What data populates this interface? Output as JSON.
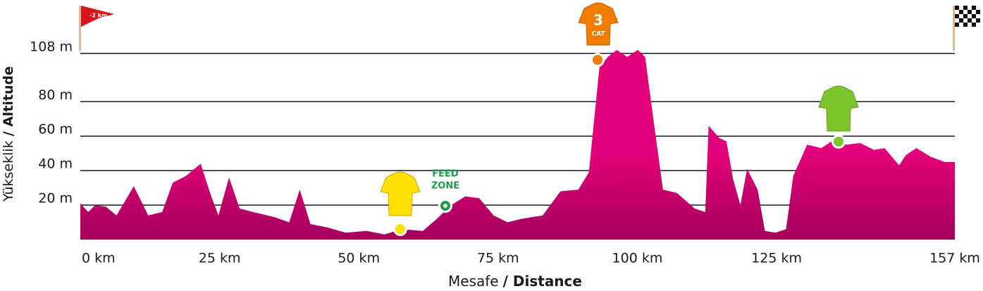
{
  "chart_data": {
    "type": "area",
    "ylabel": [
      "Yükseklik",
      "/ Altitude"
    ],
    "xlabel": [
      "Mesafe",
      "/ Distance"
    ],
    "start_flag": "-2 km",
    "climb_category": [
      "3",
      "CAT"
    ],
    "feed_zone": [
      "FEED",
      "ZONE"
    ],
    "color": "#e2007a",
    "xlim": [
      0,
      157
    ],
    "xticks": [
      {
        "value": 0,
        "label": "0 km"
      },
      {
        "value": 25,
        "label": "25 km"
      },
      {
        "value": 50,
        "label": "50 km"
      },
      {
        "value": 75,
        "label": "75 km"
      },
      {
        "value": 100,
        "label": "100 km"
      },
      {
        "value": 125,
        "label": "125 km"
      },
      {
        "value": 157,
        "label": "157 km"
      }
    ],
    "ylim": [
      0,
      112
    ],
    "yticks": [
      {
        "value": 20,
        "label": "20 m"
      },
      {
        "value": 40,
        "label": "40 m"
      },
      {
        "value": 60,
        "label": "60 m"
      },
      {
        "value": 80,
        "label": "80 m"
      },
      {
        "value": 108,
        "label": "108 m"
      }
    ],
    "grid": true,
    "x": [
      0,
      1.4,
      2.7,
      4.6,
      6.5,
      9.6,
      12.2,
      14.7,
      16.6,
      19,
      21.6,
      23.5,
      24.8,
      26.7,
      28.6,
      31,
      34.9,
      37.5,
      39.4,
      41.3,
      44.4,
      47.6,
      51.4,
      54.6,
      57.7,
      61.5,
      64,
      66.6,
      69.1,
      71.6,
      74.2,
      76.7,
      79.2,
      83,
      86.2,
      89.4,
      91.3,
      93.2,
      94.7,
      96.3,
      98.2,
      100.1,
      101.4,
      102.7,
      104.6,
      107.1,
      110.3,
      112.2,
      112.8,
      114.7,
      116,
      117.2,
      118.5,
      119.7,
      121.6,
      122.9,
      124.8,
      126.7,
      128,
      130.5,
      133,
      134.9,
      137.5,
      140,
      142.5,
      144.4,
      147,
      148.2,
      150.1,
      152.7,
      155.2,
      157
    ],
    "values": [
      21,
      16,
      20,
      19,
      14,
      31,
      14,
      16,
      33,
      37,
      44,
      25,
      14,
      36,
      18,
      16,
      13,
      10,
      29,
      9,
      7,
      4,
      5,
      3,
      6,
      5,
      12,
      20,
      25,
      24,
      14,
      10,
      12,
      14,
      28,
      29,
      39,
      100,
      106,
      110,
      106,
      110,
      106,
      74,
      29,
      27,
      18,
      16,
      66,
      59,
      57,
      35,
      20,
      41,
      29,
      5,
      4,
      6,
      37,
      55,
      53,
      57,
      55,
      56,
      52,
      53,
      43,
      49,
      53,
      48,
      45,
      45
    ]
  }
}
